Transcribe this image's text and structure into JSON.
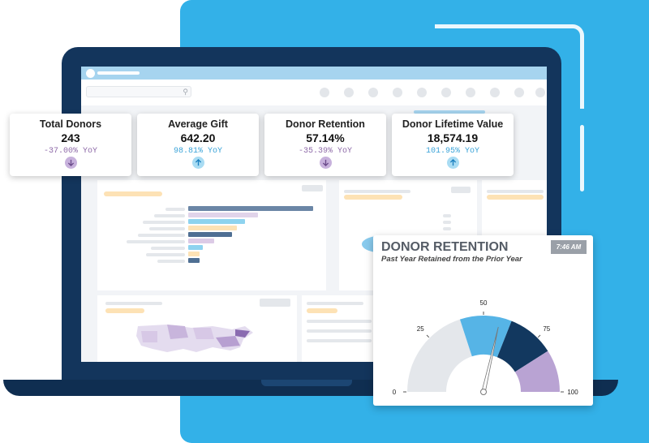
{
  "kpis": [
    {
      "label": "Total Donors",
      "value": "243",
      "yoy": "-37.00% YoY",
      "trend": "down",
      "yoy_color": "#8e6aa8",
      "arrow_color": "#c7b1dc",
      "arrow_fg": "#6a4a8a"
    },
    {
      "label": "Average Gift",
      "value": "642.20",
      "yoy": "98.81% YoY",
      "trend": "up",
      "yoy_color": "#3aa3d8",
      "arrow_color": "#a9dcf3",
      "arrow_fg": "#1a7fbf"
    },
    {
      "label": "Donor Retention",
      "value": "57.14%",
      "yoy": "-35.39% YoY",
      "trend": "down",
      "yoy_color": "#8e6aa8",
      "arrow_color": "#c7b1dc",
      "arrow_fg": "#6a4a8a"
    },
    {
      "label": "Donor Lifetime Value",
      "value": "18,574.19",
      "yoy": "101.95% YoY",
      "trend": "up",
      "yoy_color": "#3aa3d8",
      "arrow_color": "#a9dcf3",
      "arrow_fg": "#1a7fbf"
    }
  ],
  "gauge": {
    "title": "DONOR RETENTION",
    "subtitle": "Past Year Retained from the Prior Year",
    "time": "7:46 AM",
    "value": 57.14,
    "min": 0,
    "max": 100,
    "ticks": [
      "0",
      "25",
      "50",
      "75",
      "100"
    ],
    "bands": [
      {
        "from": 0,
        "to": 40,
        "color": "#e4e7eb"
      },
      {
        "from": 40,
        "to": 62,
        "color": "#56b4e6"
      },
      {
        "from": 62,
        "to": 82,
        "color": "#12385f"
      },
      {
        "from": 82,
        "to": 100,
        "color": "#b9a3d3"
      }
    ]
  },
  "colors": {
    "backdrop": "#33b1e8",
    "laptop": "#13355c"
  },
  "icons": {
    "search": "search-icon",
    "arrow_up": "arrow-up-icon",
    "arrow_down": "arrow-down-icon"
  }
}
